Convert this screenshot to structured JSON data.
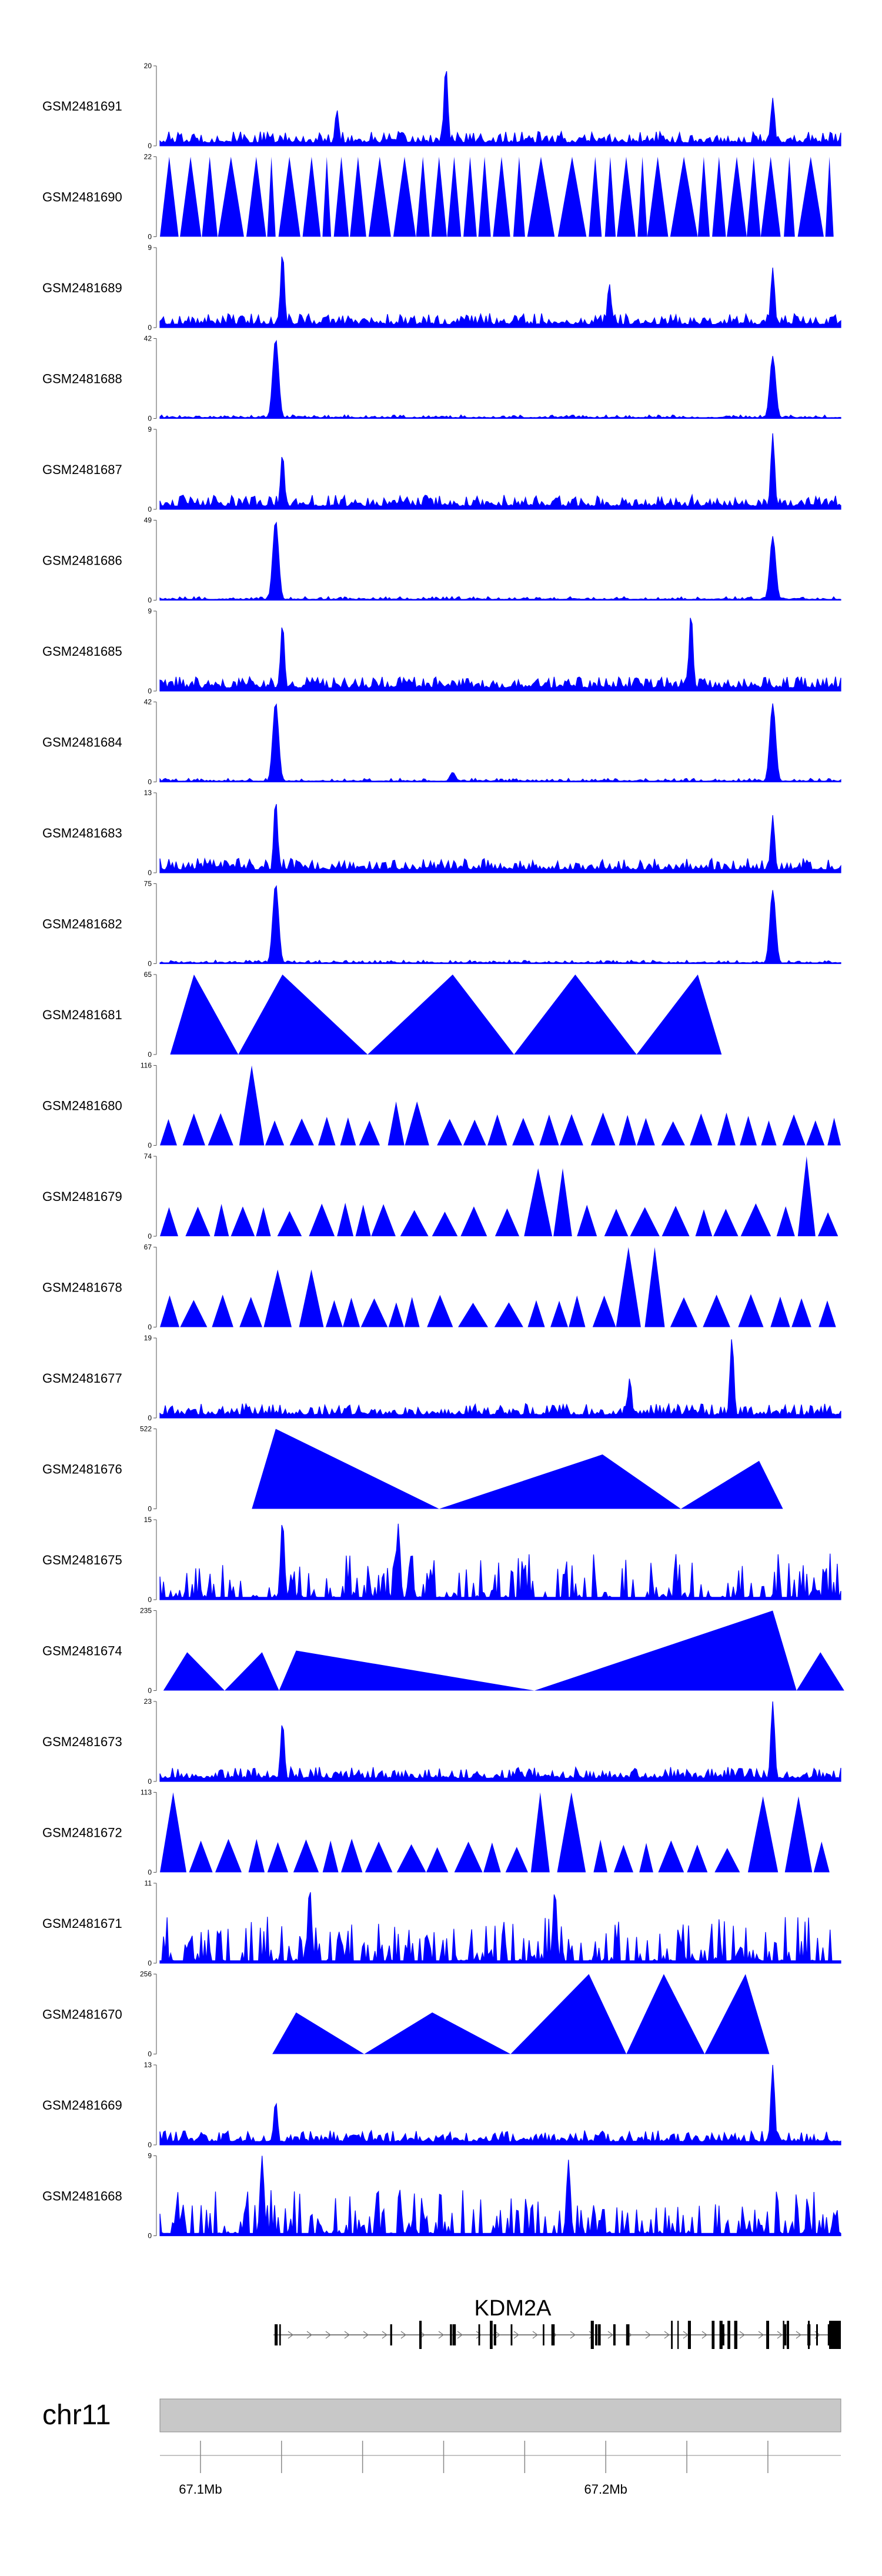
{
  "chart_data": {
    "type": "area",
    "title": "",
    "xlabel": "",
    "ylabel": "",
    "fill_color": "#0000ff",
    "xlim_mb": [
      67.09,
      67.258
    ],
    "tracks": [
      {
        "name": "GSM2481691",
        "ymax": "20",
        "ymin": "0",
        "style": "dense",
        "peaks": [
          [
            0.42,
            1.0
          ],
          [
            0.9,
            0.6
          ],
          [
            0.26,
            0.45
          ]
        ]
      },
      {
        "name": "GSM2481690",
        "ymax": "22",
        "ymin": "0",
        "style": "triangles",
        "peaks": []
      },
      {
        "name": "GSM2481689",
        "ymax": "9",
        "ymin": "0",
        "style": "dense",
        "peaks": [
          [
            0.18,
            0.95
          ],
          [
            0.9,
            0.75
          ],
          [
            0.66,
            0.55
          ]
        ]
      },
      {
        "name": "GSM2481688",
        "ymax": "42",
        "ymin": "0",
        "style": "peaky",
        "peaks": [
          [
            0.17,
            1.0
          ],
          [
            0.9,
            0.78
          ]
        ]
      },
      {
        "name": "GSM2481687",
        "ymax": "9",
        "ymin": "0",
        "style": "dense",
        "peaks": [
          [
            0.9,
            0.95
          ],
          [
            0.18,
            0.7
          ]
        ]
      },
      {
        "name": "GSM2481686",
        "ymax": "49",
        "ymin": "0",
        "style": "peaky",
        "peaks": [
          [
            0.17,
            1.0
          ],
          [
            0.9,
            0.8
          ]
        ]
      },
      {
        "name": "GSM2481685",
        "ymax": "9",
        "ymin": "0",
        "style": "dense",
        "peaks": [
          [
            0.78,
            0.98
          ],
          [
            0.18,
            0.85
          ]
        ]
      },
      {
        "name": "GSM2481684",
        "ymax": "42",
        "ymin": "0",
        "style": "peaky",
        "peaks": [
          [
            0.17,
            1.0
          ],
          [
            0.9,
            0.98
          ],
          [
            0.43,
            0.12
          ]
        ]
      },
      {
        "name": "GSM2481683",
        "ymax": "13",
        "ymin": "0",
        "style": "dense",
        "peaks": [
          [
            0.17,
            0.92
          ],
          [
            0.9,
            0.72
          ]
        ]
      },
      {
        "name": "GSM2481682",
        "ymax": "75",
        "ymin": "0",
        "style": "peaky",
        "peaks": [
          [
            0.17,
            1.0
          ],
          [
            0.9,
            0.92
          ]
        ]
      },
      {
        "name": "GSM2481681",
        "ymax": "65",
        "ymin": "0",
        "style": "bigtri",
        "peaks": [
          [
            0.05,
            1.0
          ],
          [
            0.18,
            1.0
          ],
          [
            0.43,
            1.0
          ],
          [
            0.61,
            1.0
          ],
          [
            0.79,
            1.0
          ]
        ]
      },
      {
        "name": "GSM2481680",
        "ymax": "116",
        "ymin": "0",
        "style": "midtri",
        "peaks": [
          [
            0.13,
            1.0
          ],
          [
            0.37,
            0.55
          ]
        ]
      },
      {
        "name": "GSM2481679",
        "ymax": "74",
        "ymin": "0",
        "style": "midtri",
        "peaks": [
          [
            0.95,
            1.0
          ],
          [
            0.59,
            0.85
          ]
        ]
      },
      {
        "name": "GSM2481678",
        "ymax": "67",
        "ymin": "0",
        "style": "midtri",
        "peaks": [
          [
            0.72,
            1.0
          ],
          [
            0.2,
            0.72
          ]
        ]
      },
      {
        "name": "GSM2481677",
        "ymax": "19",
        "ymin": "0",
        "style": "dense",
        "peaks": [
          [
            0.84,
            1.0
          ],
          [
            0.69,
            0.5
          ]
        ]
      },
      {
        "name": "GSM2481676",
        "ymax": "522",
        "ymin": "0",
        "style": "bigtri",
        "peaks": [
          [
            0.17,
            1.0
          ],
          [
            0.65,
            0.68
          ],
          [
            0.88,
            0.6
          ]
        ]
      },
      {
        "name": "GSM2481675",
        "ymax": "15",
        "ymin": "0",
        "style": "sparse",
        "peaks": [
          [
            0.18,
            1.0
          ],
          [
            0.35,
            0.95
          ]
        ]
      },
      {
        "name": "GSM2481674",
        "ymax": "235",
        "ymin": "0",
        "style": "bigtri",
        "peaks": [
          [
            0.04,
            0.48
          ],
          [
            0.15,
            0.48
          ],
          [
            0.2,
            0.5
          ],
          [
            0.9,
            1.0
          ],
          [
            0.97,
            0.48
          ]
        ]
      },
      {
        "name": "GSM2481673",
        "ymax": "23",
        "ymin": "0",
        "style": "dense",
        "peaks": [
          [
            0.9,
            1.0
          ],
          [
            0.18,
            0.75
          ]
        ]
      },
      {
        "name": "GSM2481672",
        "ymax": "113",
        "ymin": "0",
        "style": "midtri",
        "peaks": [
          [
            0.02,
            1.0
          ],
          [
            0.57,
            1.0
          ],
          [
            0.92,
            0.95
          ]
        ]
      },
      {
        "name": "GSM2481671",
        "ymax": "11",
        "ymin": "0",
        "style": "sparse",
        "peaks": [
          [
            0.22,
            0.95
          ],
          [
            0.58,
            0.92
          ]
        ]
      },
      {
        "name": "GSM2481670",
        "ymax": "256",
        "ymin": "0",
        "style": "bigtri",
        "peaks": [
          [
            0.2,
            0.52
          ],
          [
            0.4,
            0.52
          ],
          [
            0.63,
            1.0
          ],
          [
            0.74,
            1.0
          ],
          [
            0.86,
            1.0
          ]
        ]
      },
      {
        "name": "GSM2481669",
        "ymax": "13",
        "ymin": "0",
        "style": "dense",
        "peaks": [
          [
            0.9,
            1.0
          ],
          [
            0.17,
            0.55
          ]
        ]
      },
      {
        "name": "GSM2481668",
        "ymax": "9",
        "ymin": "0",
        "style": "sparse",
        "peaks": [
          [
            0.15,
            1.0
          ],
          [
            0.6,
            0.95
          ]
        ]
      }
    ],
    "gene": {
      "name": "KDM2A",
      "start_mb": 67.118,
      "end_mb": 67.258,
      "strand": "+"
    },
    "chromosome": "chr11",
    "axis_ticks": [
      {
        "value": 67.1,
        "label": "67.1Mb"
      },
      {
        "value": 67.12,
        "label": ""
      },
      {
        "value": 67.14,
        "label": ""
      },
      {
        "value": 67.16,
        "label": ""
      },
      {
        "value": 67.18,
        "label": ""
      },
      {
        "value": 67.2,
        "label": "67.2Mb"
      },
      {
        "value": 67.22,
        "label": ""
      },
      {
        "value": 67.24,
        "label": ""
      }
    ]
  }
}
